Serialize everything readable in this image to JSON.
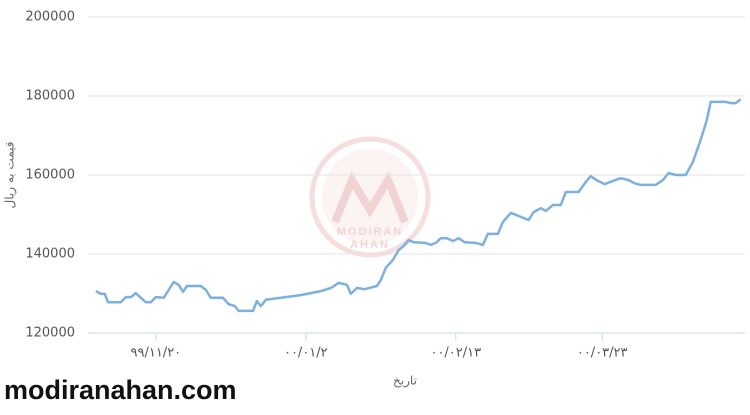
{
  "chart_data": {
    "type": "line",
    "xlabel": "تاریخ",
    "ylabel": "قیمت به ریال",
    "watermark": "modiranahan.com",
    "logo_text": [
      "MODIRAN",
      "AHAN"
    ],
    "xlim": [
      -19,
      165
    ],
    "xticks": [
      {
        "value": 0,
        "label": "۹۹/۱۱/۲۰"
      },
      {
        "value": 42,
        "label": "۰۰/۰۱/۲"
      },
      {
        "value": 84,
        "label": "۰۰/۰۲/۱۳"
      },
      {
        "value": 125,
        "label": "۰۰/۰۳/۲۳"
      }
    ],
    "ylim": [
      120000,
      200000
    ],
    "yticks": [
      120000,
      140000,
      160000,
      180000,
      200000
    ],
    "grid": true,
    "series": [
      {
        "name": "قیمت",
        "color": "#7cb0e0",
        "x": [
          -16.8,
          -15.4,
          -14.3,
          -13.4,
          -9.8,
          -8.4,
          -7,
          -5.6,
          -4.2,
          -2.8,
          -1.4,
          0,
          2.2,
          3.6,
          5,
          6.4,
          7.6,
          8.7,
          12.6,
          14,
          15.4,
          18.8,
          20.4,
          22.1,
          23.2,
          27.2,
          28.3,
          29.4,
          30.8,
          35,
          40.6,
          46.2,
          49,
          51.2,
          53.5,
          54.6,
          56.3,
          58.5,
          61.9,
          63,
          64.4,
          66.4,
          68,
          69.4,
          70.8,
          72.2,
          75.6,
          77,
          78.4,
          79.8,
          81.5,
          83.2,
          84.8,
          86.5,
          89.6,
          91.6,
          93,
          95.8,
          97.2,
          99.4,
          102.2,
          104.4,
          105.8,
          107.8,
          109.2,
          111.2,
          113.4,
          114.8,
          118.4,
          120.4,
          121.8,
          123.8,
          125.7,
          128,
          130.2,
          132.4,
          134.1,
          135.8,
          140,
          142,
          143.6,
          145.6,
          148.4,
          150.4,
          152.6,
          154.3,
          155.4,
          159.6,
          161,
          162.4,
          163.8
        ],
        "values": [
          130600,
          129900,
          129900,
          127800,
          127800,
          129100,
          129100,
          130100,
          128900,
          127800,
          127800,
          129100,
          128900,
          130900,
          132900,
          132200,
          130400,
          131900,
          131900,
          130900,
          128900,
          128900,
          127300,
          126800,
          125600,
          125600,
          128100,
          126800,
          128400,
          128900,
          129600,
          130600,
          131400,
          132700,
          132200,
          129900,
          131400,
          131100,
          131900,
          133400,
          136500,
          138500,
          141000,
          142000,
          143500,
          143000,
          142800,
          142300,
          142800,
          144000,
          144000,
          143300,
          144000,
          143000,
          142800,
          142300,
          145100,
          145100,
          148100,
          150400,
          149400,
          148600,
          150600,
          151600,
          150900,
          152400,
          152400,
          155700,
          155700,
          158200,
          159700,
          158500,
          157700,
          158500,
          159200,
          158700,
          157900,
          157500,
          157500,
          158700,
          160500,
          160000,
          160000,
          163300,
          168900,
          173900,
          178500,
          178500,
          178200,
          178200,
          179200
        ]
      }
    ]
  }
}
